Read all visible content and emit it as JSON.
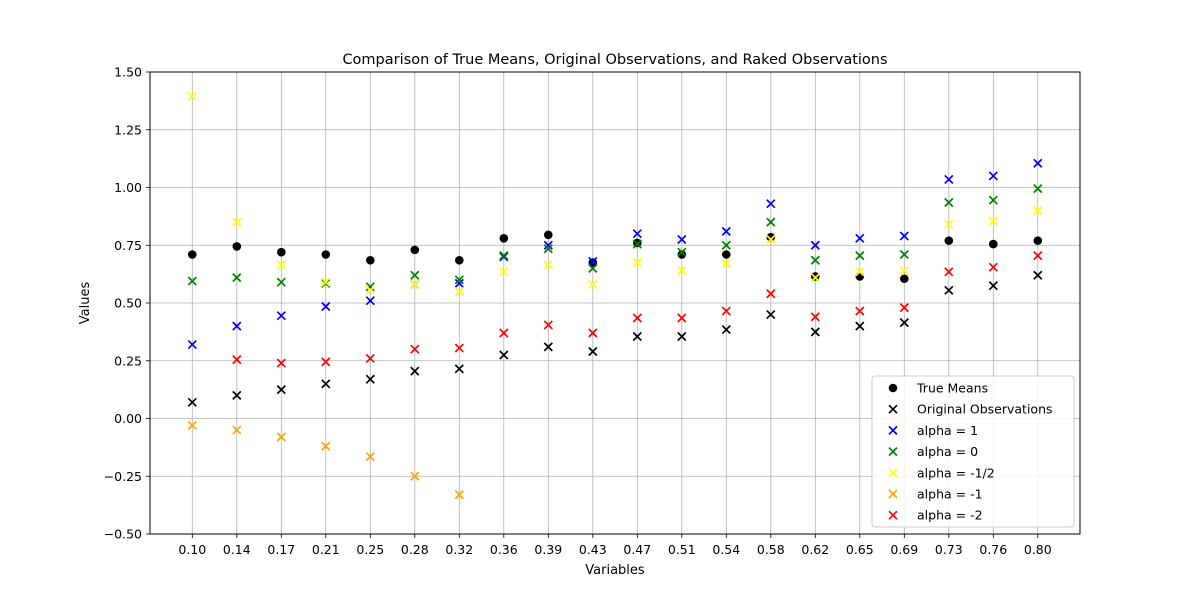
{
  "chart_data": {
    "type": "scatter",
    "title": "Comparison of True Means, Original Observations, and Raked Observations",
    "xlabel": "Variables",
    "ylabel": "Values",
    "ylim": [
      -0.5,
      1.5
    ],
    "yticks": [
      "−0.50",
      "−0.25",
      "0.00",
      "0.25",
      "0.50",
      "0.75",
      "1.00",
      "1.25",
      "1.50"
    ],
    "ytick_values": [
      -0.5,
      -0.25,
      0,
      0.25,
      0.5,
      0.75,
      1.0,
      1.25,
      1.5
    ],
    "categories": [
      "0.10",
      "0.14",
      "0.17",
      "0.21",
      "0.25",
      "0.28",
      "0.32",
      "0.36",
      "0.39",
      "0.43",
      "0.47",
      "0.51",
      "0.54",
      "0.58",
      "0.62",
      "0.65",
      "0.69",
      "0.73",
      "0.76",
      "0.80"
    ],
    "grid": true,
    "legend_position": "lower right",
    "series": [
      {
        "name": "True Means",
        "marker": "circle",
        "color": "#000000",
        "values": [
          0.71,
          0.745,
          0.72,
          0.71,
          0.685,
          0.73,
          0.685,
          0.78,
          0.795,
          0.675,
          0.76,
          0.71,
          0.71,
          0.785,
          0.615,
          0.615,
          0.605,
          0.77,
          0.755,
          0.77
        ]
      },
      {
        "name": "Original Observations",
        "marker": "x",
        "color": "#000000",
        "values": [
          0.07,
          0.1,
          0.125,
          0.15,
          0.17,
          0.205,
          0.215,
          0.275,
          0.31,
          0.29,
          0.355,
          0.355,
          0.385,
          0.45,
          0.375,
          0.4,
          0.415,
          0.555,
          0.575,
          0.62
        ]
      },
      {
        "name": "alpha = 1",
        "marker": "x",
        "color": "#0000ff",
        "values": [
          0.32,
          0.4,
          0.445,
          0.485,
          0.51,
          0.58,
          0.585,
          0.7,
          0.75,
          0.68,
          0.8,
          0.775,
          0.81,
          0.93,
          0.75,
          0.78,
          0.79,
          1.035,
          1.05,
          1.105
        ]
      },
      {
        "name": "alpha = 0",
        "marker": "x",
        "color": "#008000",
        "values": [
          0.595,
          0.61,
          0.59,
          0.585,
          0.57,
          0.62,
          0.6,
          0.705,
          0.735,
          0.65,
          0.755,
          0.72,
          0.75,
          0.85,
          0.685,
          0.705,
          0.71,
          0.935,
          0.945,
          0.995
        ]
      },
      {
        "name": "alpha = -1/2",
        "marker": "x",
        "color": "#ffff00",
        "values": [
          1.395,
          0.85,
          0.665,
          0.59,
          0.555,
          0.58,
          0.55,
          0.635,
          0.665,
          0.58,
          0.675,
          0.64,
          0.67,
          0.775,
          0.61,
          0.635,
          0.64,
          0.84,
          0.855,
          0.9
        ]
      },
      {
        "name": "alpha = -1",
        "marker": "x",
        "color": "#ffa500",
        "values": [
          -0.03,
          -0.05,
          -0.08,
          -0.12,
          -0.165,
          -0.25,
          -0.33,
          null,
          null,
          null,
          null,
          null,
          null,
          null,
          null,
          null,
          null,
          null,
          null,
          null
        ]
      },
      {
        "name": "alpha = -2",
        "marker": "x",
        "color": "#ff0000",
        "values": [
          null,
          0.255,
          0.24,
          0.245,
          0.26,
          0.3,
          0.305,
          0.37,
          0.405,
          0.37,
          0.435,
          0.435,
          0.465,
          0.54,
          0.44,
          0.465,
          0.48,
          0.635,
          0.655,
          0.705
        ]
      }
    ]
  }
}
